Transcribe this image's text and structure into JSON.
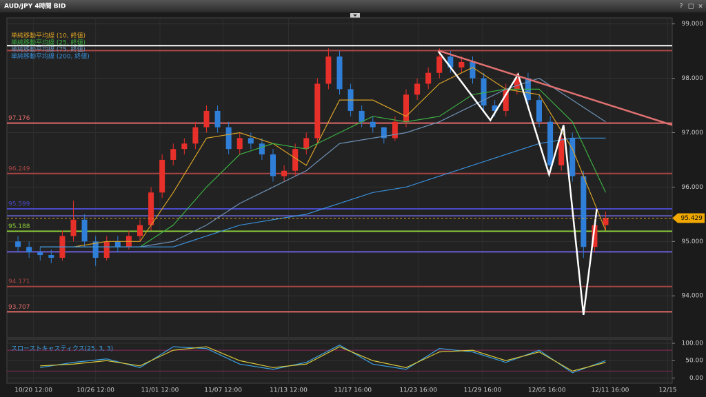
{
  "window": {
    "title": "AUD/JPY 4時間 BID",
    "buttons": [
      "?",
      "□",
      "×"
    ]
  },
  "chart_data": [
    {
      "type": "candlestick",
      "x": [
        1,
        2,
        3,
        4,
        5,
        6,
        7,
        8,
        9,
        10,
        11,
        12,
        13,
        14,
        15,
        16,
        17,
        18,
        19,
        20,
        21,
        22,
        23,
        24,
        25,
        26,
        27,
        28,
        29,
        30,
        31,
        32,
        33,
        34,
        35,
        36,
        37,
        38,
        39,
        40,
        41,
        42,
        43,
        44,
        45,
        46,
        47,
        48,
        49,
        50,
        51,
        52,
        53,
        54
      ],
      "open": [
        95.0,
        94.9,
        94.8,
        94.75,
        94.7,
        95.1,
        95.4,
        95.0,
        94.7,
        95.0,
        94.9,
        95.1,
        95.3,
        95.9,
        96.5,
        96.7,
        96.8,
        97.1,
        97.4,
        97.1,
        96.7,
        96.9,
        96.8,
        96.6,
        96.2,
        96.3,
        96.7,
        96.9,
        97.9,
        98.4,
        97.8,
        97.4,
        97.2,
        97.1,
        96.9,
        97.2,
        97.7,
        97.9,
        98.1,
        98.4,
        98.2,
        98.3,
        98.0,
        97.5,
        97.4,
        97.8,
        98.0,
        97.6,
        97.2,
        96.4,
        96.9,
        96.2,
        94.9,
        95.3
      ],
      "high": [
        95.1,
        95.0,
        94.9,
        94.85,
        95.2,
        95.75,
        95.5,
        95.1,
        95.1,
        95.1,
        95.2,
        95.4,
        96.0,
        96.6,
        96.8,
        96.9,
        97.2,
        97.5,
        97.5,
        97.2,
        97.0,
        97.0,
        96.9,
        96.7,
        96.4,
        96.8,
        97.0,
        98.0,
        98.55,
        98.5,
        97.9,
        97.5,
        97.3,
        97.1,
        97.3,
        97.8,
        98.0,
        98.2,
        98.55,
        98.5,
        98.4,
        98.4,
        98.1,
        97.6,
        97.9,
        98.1,
        98.1,
        97.7,
        97.3,
        96.95,
        97.0,
        96.3,
        95.4,
        95.55
      ],
      "low": [
        94.8,
        94.7,
        94.65,
        94.6,
        94.65,
        95.0,
        94.9,
        94.55,
        94.65,
        94.8,
        94.85,
        95.0,
        95.2,
        95.8,
        96.4,
        96.6,
        96.7,
        97.0,
        97.0,
        96.6,
        96.6,
        96.7,
        96.5,
        96.1,
        96.1,
        96.2,
        96.6,
        96.8,
        97.8,
        97.7,
        97.3,
        97.1,
        97.0,
        96.8,
        96.85,
        97.1,
        97.6,
        97.8,
        98.0,
        98.1,
        98.1,
        97.9,
        97.4,
        97.3,
        97.3,
        97.7,
        97.5,
        97.1,
        96.3,
        96.3,
        96.1,
        94.7,
        94.8,
        95.2
      ],
      "close": [
        94.9,
        94.8,
        94.75,
        94.7,
        95.1,
        95.4,
        95.0,
        94.7,
        95.0,
        94.9,
        95.1,
        95.3,
        95.9,
        96.5,
        96.7,
        96.8,
        97.1,
        97.4,
        97.1,
        96.7,
        96.9,
        96.8,
        96.6,
        96.2,
        96.3,
        96.7,
        96.9,
        97.9,
        98.4,
        97.8,
        97.4,
        97.2,
        97.1,
        96.9,
        97.2,
        97.7,
        97.9,
        98.1,
        98.4,
        98.2,
        98.3,
        98.0,
        97.5,
        97.4,
        97.8,
        98.0,
        97.6,
        97.2,
        96.4,
        96.9,
        96.2,
        94.9,
        95.3,
        95.43
      ],
      "up_color": "#e8302a",
      "down_color": "#2f7fd8",
      "xlim": [
        0,
        60
      ],
      "xticks": [
        {
          "value": 2.4,
          "label": "10/20 12:00"
        },
        {
          "value": 8.0,
          "label": "10/26 12:00"
        },
        {
          "value": 13.8,
          "label": "11/01 12:00"
        },
        {
          "value": 19.5,
          "label": "11/07 12:00"
        },
        {
          "value": 25.4,
          "label": "11/13 12:00"
        },
        {
          "value": 31.2,
          "label": "11/17 16:00"
        },
        {
          "value": 37.1,
          "label": "11/23 16:00"
        },
        {
          "value": 42.9,
          "label": "11/29 16:00"
        },
        {
          "value": 48.7,
          "label": "12/05 16:00"
        },
        {
          "value": 54.4,
          "label": "12/11 16:00"
        },
        {
          "value": 59.6,
          "label": "12/15"
        }
      ],
      "ylim": [
        93.23,
        99.11
      ],
      "yticks": [
        {
          "value": 94,
          "label": "94.000"
        },
        {
          "value": 95,
          "label": "95.000"
        },
        {
          "value": 96,
          "label": "96.000"
        },
        {
          "value": 97,
          "label": "97.000"
        },
        {
          "value": 98,
          "label": "98.000"
        },
        {
          "value": 99,
          "label": "99.000"
        }
      ],
      "series": [
        {
          "name": "単純移動平均線 (10, 終値)",
          "color": "#d9a227",
          "x": [
            3,
            6,
            9,
            12,
            15,
            18,
            21,
            24,
            27,
            30,
            33,
            36,
            39,
            42,
            45,
            48,
            51,
            54
          ],
          "values": [
            94.9,
            94.9,
            95.0,
            95.0,
            95.9,
            96.9,
            97.0,
            96.8,
            96.4,
            97.6,
            97.6,
            97.3,
            97.9,
            98.2,
            97.8,
            97.7,
            96.7,
            95.2
          ]
        },
        {
          "name": "単純移動平均線 (25, 終値)",
          "color": "#3cb043",
          "x": [
            3,
            6,
            9,
            12,
            15,
            18,
            21,
            24,
            27,
            30,
            33,
            36,
            39,
            42,
            45,
            48,
            51,
            54
          ],
          "values": [
            94.9,
            94.9,
            94.9,
            94.9,
            95.3,
            96.0,
            96.6,
            96.8,
            96.7,
            97.0,
            97.3,
            97.2,
            97.3,
            97.7,
            97.8,
            97.8,
            97.2,
            95.9
          ]
        },
        {
          "name": "単純移動平均線 (75, 終値)",
          "color": "#6f93b8",
          "x": [
            3,
            6,
            9,
            12,
            15,
            18,
            21,
            24,
            27,
            30,
            33,
            36,
            39,
            42,
            45,
            48,
            51,
            54
          ],
          "values": [
            94.9,
            94.9,
            94.9,
            94.9,
            95.0,
            95.3,
            95.7,
            96.0,
            96.3,
            96.8,
            96.9,
            97.0,
            97.2,
            97.5,
            97.8,
            98.0,
            97.6,
            97.2
          ]
        },
        {
          "name": "単純移動平均線 (200, 終値)",
          "color": "#3a8fd9",
          "x": [
            3,
            6,
            9,
            12,
            15,
            18,
            21,
            24,
            27,
            30,
            33,
            36,
            39,
            42,
            45,
            48,
            51,
            54
          ],
          "values": [
            94.9,
            94.9,
            94.9,
            94.9,
            94.9,
            95.1,
            95.3,
            95.4,
            95.5,
            95.7,
            95.9,
            96.0,
            96.2,
            96.4,
            96.6,
            96.8,
            96.9,
            96.9
          ]
        }
      ],
      "levels": [
        {
          "value": 98.6,
          "color": "#ffffff",
          "labeled": false
        },
        {
          "value": 98.51,
          "color": "#b04848",
          "labeled": false
        },
        {
          "value": 97.176,
          "color": "#e06a6a",
          "labeled": true
        },
        {
          "value": 96.249,
          "color": "#a84444",
          "labeled": true
        },
        {
          "value": 95.599,
          "color": "#4a4ac8",
          "labeled": true
        },
        {
          "value": 95.472,
          "color": "#5a5ab0",
          "labeled": false
        },
        {
          "value": 95.188,
          "color": "#8fd03a",
          "labeled": true
        },
        {
          "value": 94.81,
          "color": "#6b5cd8",
          "labeled": false
        },
        {
          "value": 94.171,
          "color": "#a84444",
          "labeled": true
        },
        {
          "value": 93.707,
          "color": "#e06a6a",
          "labeled": true
        }
      ],
      "current_price": 95.429,
      "drawings": [
        {
          "color": "#ffffff",
          "x": [
            38.9,
            43.6,
            46.1,
            48.9,
            50.2,
            52.0,
            53.2
          ],
          "values": [
            98.5,
            97.23,
            98.07,
            96.23,
            97.14,
            93.65,
            95.6
          ]
        },
        {
          "color": "#e07070",
          "x": [
            38.9,
            60
          ],
          "values": [
            98.51,
            97.14
          ]
        }
      ]
    },
    {
      "type": "line",
      "title": "スローストキャスティクス(25, 3, 3)",
      "xlim": [
        0,
        60
      ],
      "ylim": [
        -15,
        112
      ],
      "yticks": [
        {
          "value": 0,
          "label": "0.00"
        },
        {
          "value": 50,
          "label": "50.00"
        },
        {
          "value": 100,
          "label": "100.00"
        }
      ],
      "levels": [
        {
          "value": 80,
          "color": "#8a2a5a"
        },
        {
          "value": 20,
          "color": "#8a2a5a"
        }
      ],
      "series": [
        {
          "color": "#3aa0e0",
          "x": [
            3,
            6,
            9,
            12,
            15,
            18,
            21,
            24,
            27,
            30,
            33,
            36,
            39,
            42,
            45,
            48,
            51,
            54
          ],
          "values": [
            30,
            45,
            55,
            30,
            90,
            85,
            40,
            25,
            45,
            95,
            40,
            25,
            85,
            75,
            45,
            80,
            15,
            50
          ]
        },
        {
          "color": "#d8c83a",
          "x": [
            3,
            6,
            9,
            12,
            15,
            18,
            21,
            24,
            27,
            30,
            33,
            36,
            39,
            42,
            45,
            48,
            51,
            54
          ],
          "values": [
            35,
            40,
            50,
            35,
            80,
            90,
            50,
            30,
            40,
            90,
            50,
            30,
            75,
            80,
            50,
            75,
            20,
            45
          ]
        }
      ]
    }
  ]
}
